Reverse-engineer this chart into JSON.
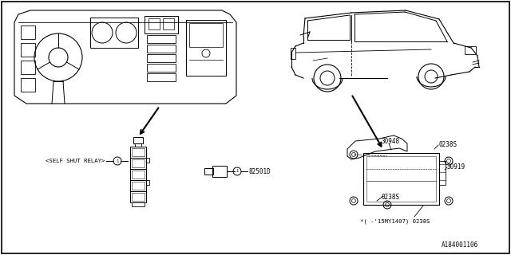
{
  "bg_color": "#ffffff",
  "line_color": "#000000",
  "text_color": "#000000",
  "diagram_id": "A184001106",
  "label_self_shut": "<SELF SHUT RELAY>",
  "label_82501D": "82501D",
  "label_30948": "30948",
  "label_0238S_1": "0238S",
  "label_0238S_2": "0238S",
  "label_0238S_3": "0238S",
  "label_30919": "30919",
  "label_note": "*( -'15MY1407) 0238S"
}
